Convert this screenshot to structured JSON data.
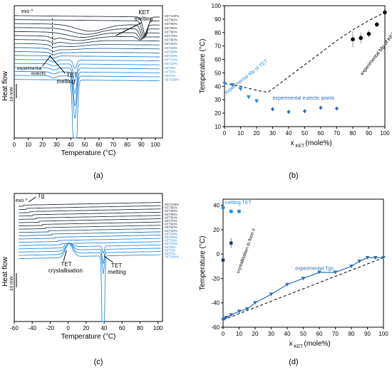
{
  "colors": {
    "dark": "#2b3540",
    "blue": "#2a8be0",
    "marker_blue": "#2a8be0",
    "axis": "#000000",
    "line_blue": "#2e6cb5"
  },
  "trace_labels": {
    "top_a": [
      "KET100%",
      "KET95%",
      "KET90%",
      "KET85%",
      "KET80%",
      "KET70%",
      "KET60%",
      "KET50%",
      "KET40%",
      "KET30%",
      "KET20%",
      "KET15%",
      "KET10%",
      "KET5%",
      "KET2%",
      "KET1%",
      "TET100%"
    ],
    "top_c": [
      "KET100%",
      "KET95%",
      "KET90%",
      "KET85%",
      "KET80%",
      "KET70%",
      "KET60%",
      "KET50%",
      "KET40%",
      "KET30%",
      "KET20%",
      "KET15%",
      "KET10%",
      "KET5%",
      "KET2%",
      "KET1%",
      "TET100%"
    ]
  },
  "panels": {
    "a": {
      "label": "(a)",
      "ylabel": "Heat flow",
      "xlabel": "Temperature (°C)",
      "exo": "exo ^",
      "scale": "10 mW",
      "ann_ket": "KET",
      "ann_ket2": "melting",
      "ann_tet": "TET",
      "ann_tet2": "melting",
      "ann_eut1": "experimental",
      "ann_eut2": "eutectic"
    },
    "b": {
      "label": "(b)",
      "ylabel": "Temperature (°C)",
      "xlabel": "x",
      "xsub": "KET",
      "xunit": " (mole%)",
      "ann_mp_ket": "experimental Mp of KET",
      "ann_mp_tet": "experimental Mp of TET",
      "ann_eut": "experimental eutectic points"
    },
    "c": {
      "label": "(c)",
      "ylabel": "Heat flow",
      "xlabel": "Temperature (°C)",
      "exo": "exo ^",
      "scale": "10 mW",
      "ann_tg": "Tg",
      "ann_tet_c1": "TET",
      "ann_tet_c2": "crystallisation",
      "ann_tet_m1": "TET",
      "ann_tet_m2": "melting"
    },
    "d": {
      "label": "(d)",
      "ylabel": "Temperature (°C)",
      "xlabel": "x",
      "xsub": "KET",
      "xunit": " (mole%)",
      "ann_melt": "melting TET",
      "ann_cryst": "crystallisation to form II",
      "ann_tg": "experimental Tgs"
    }
  },
  "chart_data": [
    {
      "id": "a",
      "type": "line",
      "xlabel": "Temperature (°C)",
      "ylabel": "Heat flow",
      "xlim": [
        0,
        105
      ],
      "xticks": [
        0,
        10,
        20,
        30,
        40,
        50,
        60,
        70,
        80,
        90,
        100
      ],
      "series_count": 17
    },
    {
      "id": "b",
      "type": "scatter",
      "xlabel": "xKET (mole%)",
      "ylabel": "Temperature (°C)",
      "xlim": [
        0,
        100
      ],
      "ylim": [
        10,
        100
      ],
      "xticks": [
        0,
        10,
        20,
        30,
        40,
        50,
        60,
        70,
        80,
        90,
        100
      ],
      "yticks": [
        10,
        20,
        30,
        40,
        50,
        60,
        70,
        80,
        90,
        100
      ],
      "series": [
        {
          "name": "experimental Mp of KET",
          "marker": "circle",
          "color": "#000000",
          "x": [
            80,
            85,
            90,
            95,
            100
          ],
          "y": [
            75,
            76,
            79,
            86,
            95
          ],
          "err": [
            6,
            4,
            3,
            2,
            0
          ]
        },
        {
          "name": "experimental Mp of TET",
          "marker": "triangle-down",
          "color": "#2a8be0",
          "x": [
            0,
            5,
            10,
            15,
            20
          ],
          "y": [
            42,
            41,
            38,
            32,
            29
          ]
        },
        {
          "name": "experimental eutectic points",
          "marker": "diamond",
          "color": "#2e6cb5",
          "x": [
            30,
            40,
            50,
            60,
            70
          ],
          "y": [
            23,
            21,
            21.5,
            24,
            23.5
          ]
        }
      ],
      "ideal_curve": {
        "x": [
          0,
          10,
          20,
          27,
          30,
          40,
          50,
          60,
          70,
          80,
          90,
          100
        ],
        "y": [
          42,
          40,
          37,
          35.5,
          38,
          47,
          56,
          65,
          74,
          82,
          89,
          95
        ]
      }
    },
    {
      "id": "c",
      "type": "line",
      "xlabel": "Temperature (°C)",
      "ylabel": "Heat flow",
      "xlim": [
        -60,
        105
      ],
      "xticks": [
        -60,
        -40,
        -20,
        0,
        20,
        40,
        60,
        80,
        100
      ],
      "series_count": 17
    },
    {
      "id": "d",
      "type": "scatter",
      "xlabel": "xKET (mole%)",
      "ylabel": "Temperature (°C)",
      "xlim": [
        0,
        100
      ],
      "ylim": [
        -60,
        45
      ],
      "xticks": [
        0,
        10,
        20,
        30,
        40,
        50,
        60,
        70,
        80,
        90,
        100
      ],
      "yticks": [
        -60,
        -40,
        -20,
        0,
        20,
        40
      ],
      "series": [
        {
          "name": "melting TET",
          "marker": "circle",
          "color": "#2a8be0",
          "x": [
            0,
            5,
            10
          ],
          "y": [
            38,
            35,
            35
          ]
        },
        {
          "name": "crystallisation to form II",
          "marker": "square",
          "color": "#1a3a5c",
          "x": [
            0,
            5
          ],
          "y": [
            -5,
            9
          ],
          "err": [
            0,
            4
          ]
        },
        {
          "name": "experimental Tgs",
          "marker": "triangle-down",
          "color": "#2e6cb5",
          "x": [
            0,
            1,
            2,
            5,
            10,
            15,
            20,
            30,
            40,
            50,
            60,
            70,
            80,
            85,
            90,
            95,
            100
          ],
          "y": [
            -54,
            -53,
            -52,
            -50,
            -47,
            -45,
            -40,
            -33,
            -25,
            -20,
            -15,
            -15,
            -10,
            -6,
            -3,
            -3,
            -3
          ]
        }
      ],
      "ideal_line": {
        "x": [
          0,
          100
        ],
        "y": [
          -54,
          -3
        ]
      }
    }
  ]
}
